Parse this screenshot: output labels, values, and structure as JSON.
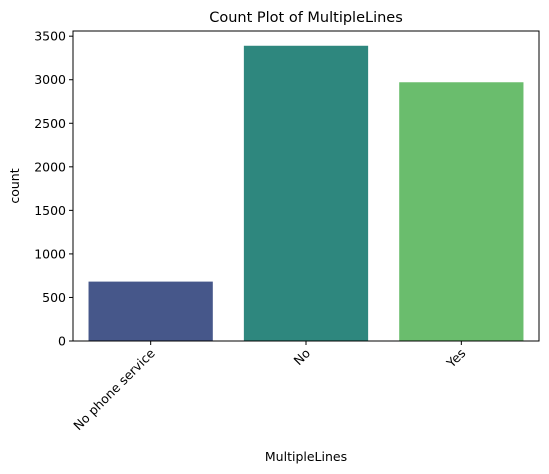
{
  "chart_data": {
    "type": "bar",
    "title": "Count Plot of MultipleLines",
    "xlabel": "MultipleLines",
    "ylabel": "count",
    "categories": [
      "No phone service",
      "No",
      "Yes"
    ],
    "values": [
      682,
      3390,
      2971
    ],
    "colors": [
      "#46578a",
      "#2e877e",
      "#6abd6d"
    ],
    "yticks": [
      0,
      500,
      1000,
      1500,
      2000,
      2500,
      3000,
      3500
    ],
    "ylim": [
      0,
      3559.5
    ],
    "grid": false,
    "legend": "none"
  }
}
